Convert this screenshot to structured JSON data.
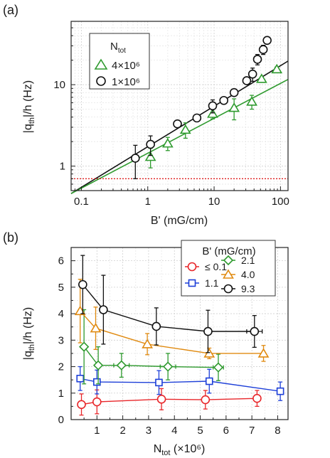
{
  "chart_data": [
    {
      "panel_label": "(a)",
      "type": "scatter",
      "xscale": "log",
      "yscale": "log",
      "xlim": [
        0.07,
        130
      ],
      "ylim": [
        0.5,
        60
      ],
      "xlabel": "B' (mG/cm)",
      "ylabel": "|q_th|/h (Hz)",
      "ylabel_main": "|q",
      "ylabel_sub": "th",
      "ylabel_tail": "|/h (Hz)",
      "xticks": [
        0.1,
        1,
        10,
        100
      ],
      "xtick_labels": [
        "0.1",
        "1",
        "10",
        "100"
      ],
      "yticks": [
        1,
        10
      ],
      "ytick_labels": [
        "1",
        "10"
      ],
      "grid": true,
      "legend_title_main": "N",
      "legend_title_sub": "tot",
      "legend_position": "top-left",
      "series": [
        {
          "name": "4×10⁶",
          "marker": "triangle",
          "color": "#2e9a2e",
          "x": [
            1.1,
            2.0,
            3.7,
            9.5,
            20,
            37,
            52,
            88
          ],
          "y": [
            1.3,
            1.9,
            2.8,
            4.4,
            5.2,
            6.2,
            11.8,
            15.5
          ],
          "err": [
            0.35,
            0.35,
            0.6,
            0.6,
            1.5,
            1.2,
            0.5,
            1.0
          ]
        },
        {
          "name": "1×10⁶",
          "marker": "circle",
          "color": "#111111",
          "x": [
            0.65,
            1.1,
            2.8,
            5.5,
            9.5,
            14,
            20,
            31,
            38,
            45,
            55,
            63
          ],
          "y": [
            1.25,
            1.85,
            3.3,
            3.9,
            5.5,
            6.4,
            8.0,
            11.2,
            13.5,
            20.5,
            27,
            35
          ],
          "err": [
            0.55,
            0.5,
            0.3,
            0.3,
            1.0,
            0.6,
            0.5,
            0.9,
            2.5,
            3.0,
            3.5,
            3.0
          ]
        }
      ],
      "fits": [
        {
          "color": "#111111",
          "x": [
            0.07,
            130
          ],
          "y": [
            0.46,
            19.5
          ]
        },
        {
          "color": "#2e9a2e",
          "x": [
            0.07,
            130
          ],
          "y": [
            0.46,
            11.6
          ]
        }
      ],
      "threshold": {
        "y": 0.7,
        "color": "#e02020",
        "style": "dotted"
      }
    },
    {
      "panel_label": "(b)",
      "type": "line",
      "xlim": [
        0,
        8.4
      ],
      "ylim": [
        0,
        6.5
      ],
      "xlabel_main": "N",
      "xlabel_sub": "tot",
      "xlabel_tail": " (×10⁶)",
      "ylabel_main": "|q",
      "ylabel_sub": "th",
      "ylabel_tail": "|/h (Hz)",
      "xticks": [
        1,
        2,
        3,
        4,
        5,
        6,
        7,
        8
      ],
      "yticks": [
        0,
        1,
        2,
        3,
        4,
        5,
        6
      ],
      "grid": true,
      "legend_title": "B' (mG/cm)",
      "legend_position": "top-right",
      "series": [
        {
          "name": "≤ 0.1",
          "marker": "circle",
          "color": "#e8262a",
          "x": [
            0.4,
            1.0,
            3.5,
            5.2,
            7.2
          ],
          "y": [
            0.57,
            0.67,
            0.77,
            0.75,
            0.8
          ],
          "err": [
            0.4,
            0.45,
            0.4,
            0.35,
            0.3
          ],
          "xerr": [
            0,
            0,
            0,
            0,
            0
          ]
        },
        {
          "name": "1.1",
          "marker": "square",
          "color": "#1d3fd8",
          "x": [
            0.35,
            1.0,
            3.4,
            5.35,
            8.1
          ],
          "y": [
            1.55,
            1.42,
            1.4,
            1.45,
            1.07
          ],
          "err": [
            0.45,
            0.45,
            0.45,
            0.45,
            0.35
          ],
          "xerr": [
            0,
            0,
            0,
            0,
            0
          ]
        },
        {
          "name": "2.1",
          "marker": "diamond",
          "color": "#2e9a2e",
          "x": [
            0.5,
            1.05,
            1.95,
            3.75,
            5.7
          ],
          "y": [
            2.75,
            2.05,
            2.05,
            2.0,
            1.97
          ],
          "err": [
            1.4,
            0.7,
            0.45,
            0.5,
            0.5
          ],
          "xerr": [
            0,
            0,
            0.3,
            0.3,
            0.2
          ]
        },
        {
          "name": "4.0",
          "marker": "triangle",
          "color": "#e08a10",
          "x": [
            0.35,
            0.95,
            2.95,
            5.35,
            7.45
          ],
          "y": [
            4.1,
            3.45,
            2.85,
            2.5,
            2.5
          ],
          "err": [
            1.2,
            0.8,
            0.4,
            0.2,
            0.3
          ],
          "xerr": [
            0,
            0,
            0,
            0,
            0
          ]
        },
        {
          "name": "9.3",
          "marker": "circle",
          "color": "#111111",
          "x": [
            0.45,
            1.25,
            3.3,
            5.3,
            7.1
          ],
          "y": [
            5.1,
            4.15,
            3.52,
            3.33,
            3.33
          ],
          "err": [
            1.1,
            1.3,
            0.7,
            0.8,
            0.6
          ],
          "xerr": [
            0,
            0,
            0,
            0,
            0.3
          ]
        }
      ]
    }
  ]
}
